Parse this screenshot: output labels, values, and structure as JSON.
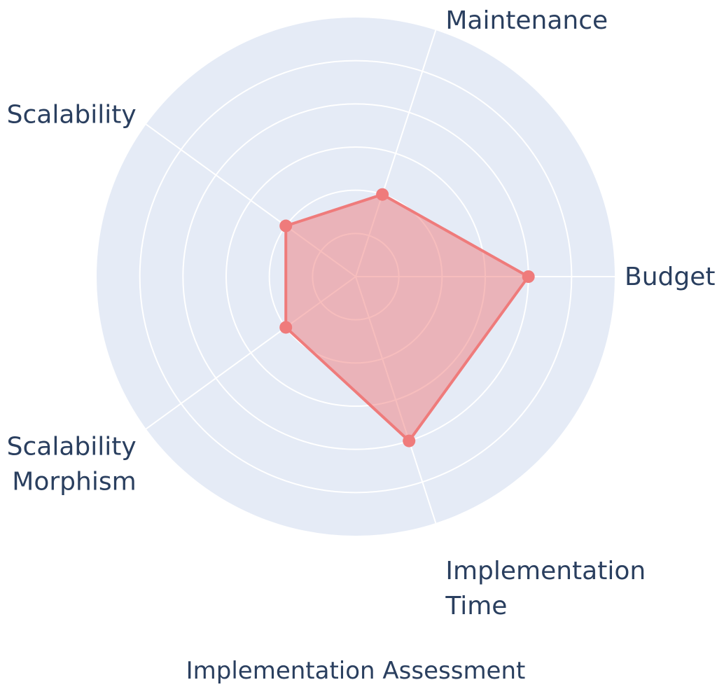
{
  "chart_data": {
    "type": "radar",
    "title": "Implementation Assessment",
    "axes": [
      "Budget",
      "Maintenance",
      "Scalability",
      "Scalability Morphism",
      "Implementation Time"
    ],
    "axis_label_lines": [
      [
        "Budget"
      ],
      [
        "Maintenance"
      ],
      [
        "Scalability"
      ],
      [
        "Scalability",
        "Morphism"
      ],
      [
        "Implementation",
        "Time"
      ]
    ],
    "values": [
      4,
      2,
      2,
      2,
      4
    ],
    "rlim": [
      0,
      6
    ],
    "rings": [
      1,
      2,
      3,
      4,
      5,
      6
    ],
    "grid": true,
    "colors": {
      "polar_bg": "#e5ebf6",
      "grid": "#ffffff",
      "series_line": "#ef7b7b",
      "series_fill": "rgba(239,123,123,0.5)",
      "text": "#2a3f5f"
    }
  }
}
